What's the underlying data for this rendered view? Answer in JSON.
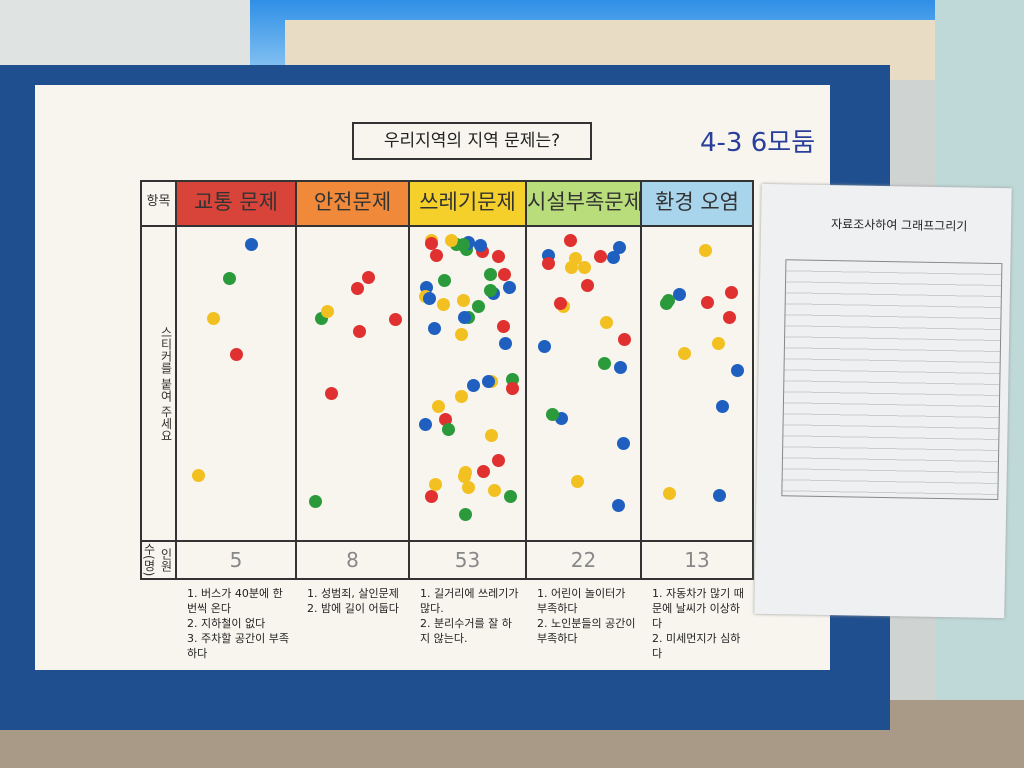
{
  "title": "우리지역의 지역 문제는?",
  "group": "4-3 6모둠",
  "table": {
    "header_label": "항목",
    "row_labels": [
      "스티커를 붙여 주세요",
      "인원 수(명)"
    ],
    "columns": [
      {
        "name": "교통 문제",
        "count": 5,
        "notes": [
          "1. 버스가 40분에 한 번씩 온다",
          "2. 지하철이 없다",
          "3. 주차할 공간이 부족하다"
        ]
      },
      {
        "name": "안전문제",
        "count": 8,
        "notes": [
          "1. 성범죄, 살인문제",
          "2. 밤에 길이 어둡다"
        ]
      },
      {
        "name": "쓰레기문제",
        "count": 53,
        "notes": [
          "1. 길거리에 쓰레기가 많다.",
          "2. 분리수거를 잘 하지 않는다."
        ]
      },
      {
        "name": "시설부족문제",
        "count": 22,
        "notes": [
          "1. 어린이 놀이터가 부족하다",
          "2. 노인분들의 공간이 부족하다"
        ]
      },
      {
        "name": "환경 오염",
        "count": 13,
        "notes": [
          "1. 자동차가 많기 때문에 날씨가 이상하다",
          "2. 미세먼지가 심하다"
        ]
      }
    ]
  },
  "worksheet": {
    "title": "자료조사하여 그래프그리기"
  }
}
